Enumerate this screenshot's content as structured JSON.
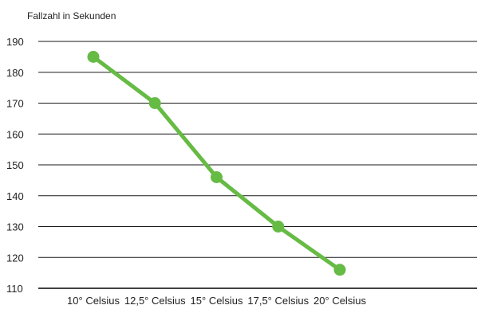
{
  "chart_data": {
    "type": "line",
    "title": "",
    "ylabel": "Fallzahl in Sekunden",
    "xlabel": "",
    "categories": [
      "10° Celsius",
      "12,5° Celsius",
      "15° Celsius",
      "17,5° Celsius",
      "20° Celsius"
    ],
    "series": [
      {
        "values": [
          185,
          170,
          146,
          130,
          116
        ],
        "color": "#66bb44"
      }
    ],
    "ylim": [
      110,
      190
    ],
    "yticks": [
      190,
      180,
      170,
      160,
      150,
      140,
      130,
      120,
      110
    ],
    "grid": "horizontal",
    "legend": "none"
  }
}
